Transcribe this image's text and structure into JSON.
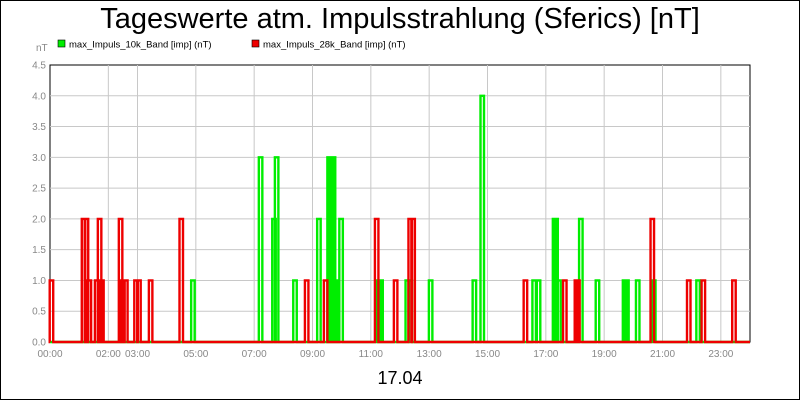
{
  "chart_data": {
    "type": "line",
    "title": "Tageswerte atm. Impulsstrahlung (Sferics) [nT]",
    "ylabel": "nT",
    "xlabel": "17.04",
    "x_ticks": [
      "00:00",
      "02:00",
      "03:00",
      "05:00",
      "07:00",
      "09:00",
      "11:00",
      "13:00",
      "15:00",
      "17:00",
      "19:00",
      "21:00",
      "23:00"
    ],
    "x_tick_hours": [
      0,
      2,
      3,
      5,
      7,
      9,
      11,
      13,
      15,
      17,
      19,
      21,
      23
    ],
    "x_range_hours": [
      0,
      24
    ],
    "y_ticks": [
      "0.0",
      "0.5",
      "1.0",
      "1.5",
      "2.0",
      "2.5",
      "3.0",
      "3.5",
      "4.0",
      "4.5"
    ],
    "ylim": [
      0,
      4.5
    ],
    "grid": true,
    "legend_position": "top-left",
    "series": [
      {
        "name": "max_Impuls_10k_Band [imp] (nT)",
        "color": "#00ee00",
        "spikes": [
          [
            4.9,
            1
          ],
          [
            7.22,
            3
          ],
          [
            7.68,
            2
          ],
          [
            7.77,
            3
          ],
          [
            8.4,
            1
          ],
          [
            9.22,
            2
          ],
          [
            9.57,
            3
          ],
          [
            9.64,
            3
          ],
          [
            9.72,
            3
          ],
          [
            9.8,
            1
          ],
          [
            9.98,
            2
          ],
          [
            11.27,
            1
          ],
          [
            11.35,
            1
          ],
          [
            12.25,
            1
          ],
          [
            12.35,
            1
          ],
          [
            13.05,
            1
          ],
          [
            14.55,
            1
          ],
          [
            14.82,
            4
          ],
          [
            16.6,
            1
          ],
          [
            16.75,
            1
          ],
          [
            17.3,
            2
          ],
          [
            17.35,
            2
          ],
          [
            17.45,
            1
          ],
          [
            18.2,
            2
          ],
          [
            18.77,
            1
          ],
          [
            19.7,
            1
          ],
          [
            19.78,
            1
          ],
          [
            20.15,
            1
          ],
          [
            20.7,
            1
          ],
          [
            22.22,
            1
          ]
        ]
      },
      {
        "name": "max_Impuls_28k_Band [imp] (nT)",
        "color": "#ee0000",
        "spikes": [
          [
            0.05,
            1
          ],
          [
            1.15,
            2
          ],
          [
            1.25,
            2
          ],
          [
            1.35,
            1
          ],
          [
            1.6,
            1
          ],
          [
            1.7,
            2
          ],
          [
            1.78,
            1
          ],
          [
            2.42,
            2
          ],
          [
            2.5,
            1
          ],
          [
            2.6,
            1
          ],
          [
            2.95,
            1
          ],
          [
            3.05,
            1
          ],
          [
            3.45,
            1
          ],
          [
            4.5,
            2
          ],
          [
            8.8,
            1
          ],
          [
            9.45,
            1
          ],
          [
            11.2,
            2
          ],
          [
            11.85,
            1
          ],
          [
            12.35,
            2
          ],
          [
            12.45,
            2
          ],
          [
            16.3,
            1
          ],
          [
            17.65,
            1
          ],
          [
            18.05,
            1
          ],
          [
            18.1,
            1
          ],
          [
            20.65,
            2
          ],
          [
            21.9,
            1
          ],
          [
            22.4,
            1
          ],
          [
            23.45,
            1
          ]
        ]
      }
    ]
  }
}
